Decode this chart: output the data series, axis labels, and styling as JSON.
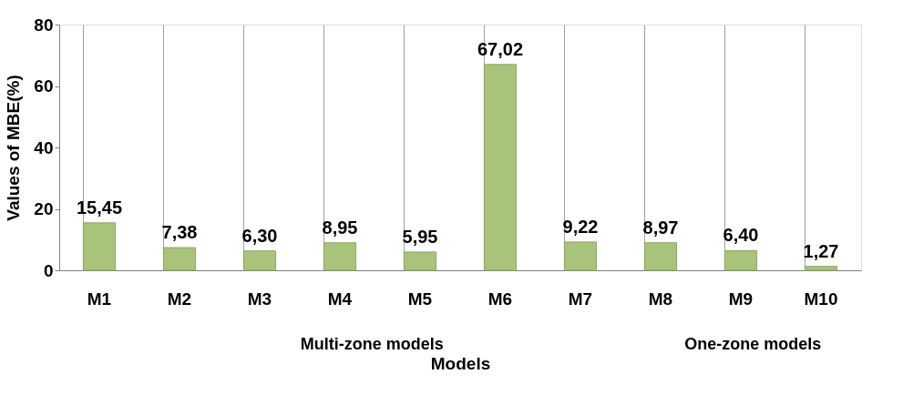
{
  "chart_data": {
    "type": "bar",
    "xlabel": "Models",
    "ylabel": "Values of  MBE(%)",
    "categories": [
      "M1",
      "M2",
      "M3",
      "M4",
      "M5",
      "M6",
      "M7",
      "M8",
      "M9",
      "M10"
    ],
    "values": [
      15.45,
      7.38,
      6.3,
      8.95,
      5.95,
      67.02,
      9.22,
      8.97,
      6.4,
      1.27
    ],
    "value_labels": [
      "15,45",
      "7,38",
      "6,30",
      "8,95",
      "5,95",
      "67,02",
      "9,22",
      "8,97",
      "6,40",
      "1,27"
    ],
    "color": "#a8c47a",
    "ylim": [
      0,
      80
    ],
    "yticks": [
      0,
      20,
      40,
      60,
      80
    ],
    "grid": "x",
    "annotations": [
      "Multi-zone models",
      "One-zone models"
    ]
  }
}
